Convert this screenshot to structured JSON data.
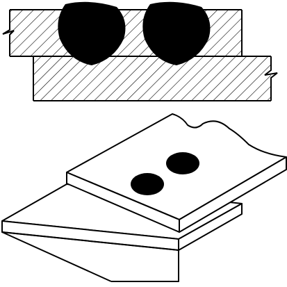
{
  "figure": {
    "background_color": "#ffffff",
    "line_color": "#000000",
    "fill_color": "#000000",
    "cross_section": {
      "top_plate": "hatched",
      "bottom_plate": "hatched",
      "weld_nugget_count": 2
    },
    "isometric": {
      "plate_count": 2,
      "weld_spot_count": 2
    }
  }
}
